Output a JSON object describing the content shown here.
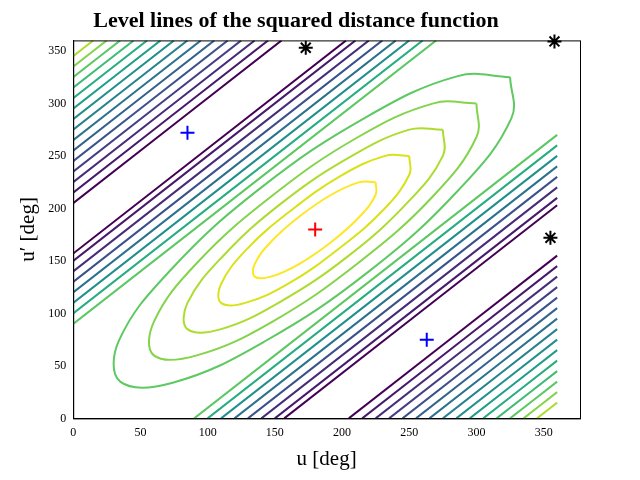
{
  "chart_data": {
    "type": "line",
    "title": "Level lines of the squared distance function",
    "x_label": "u [deg]",
    "y_label": "u′ [deg]",
    "xlim": [
      0,
      377
    ],
    "ylim": [
      0,
      360
    ],
    "xticks": [
      0,
      50,
      100,
      150,
      200,
      250,
      300,
      350
    ],
    "yticks": [
      0,
      50,
      100,
      150,
      200,
      250,
      300,
      350
    ],
    "grid": false,
    "series": [
      {
        "type": "line",
        "color": "#fde725",
        "x": [
          225,
          213,
          192,
          168,
          147,
          135,
          135,
          147,
          168,
          192,
          213,
          225,
          225
        ],
        "values": [
          225,
          225,
          213,
          192,
          168,
          147,
          135,
          135,
          147,
          168,
          192,
          213,
          225
        ]
      },
      {
        "type": "line",
        "color": "#d8e219",
        "x": [
          250,
          232,
          199,
          162,
          129,
          110,
          110,
          128,
          161,
          198,
          231,
          250,
          250
        ],
        "values": [
          250,
          250,
          231,
          198,
          161,
          128,
          110,
          110,
          129,
          162,
          199,
          232,
          250
        ]
      },
      {
        "type": "line",
        "color": "#addc30",
        "x": [
          275,
          250,
          206,
          155,
          111,
          85,
          85,
          110,
          154,
          205,
          249,
          275,
          275
        ],
        "values": [
          275,
          275,
          249,
          205,
          154,
          110,
          85,
          85,
          111,
          155,
          206,
          250,
          275
        ]
      },
      {
        "type": "line",
        "color": "#84d44b",
        "x": [
          300,
          268,
          212,
          148,
          92,
          60,
          60,
          92,
          148,
          212,
          268,
          300,
          300
        ],
        "values": [
          300,
          300,
          268,
          212,
          148,
          92,
          60,
          60,
          92,
          148,
          212,
          268,
          300
        ]
      },
      {
        "type": "line",
        "color": "#5ec962",
        "x": [
          325,
          286,
          218,
          140,
          73,
          34,
          35,
          74,
          142,
          220,
          287,
          326,
          325
        ],
        "values": [
          325,
          326,
          287,
          220,
          142,
          74,
          35,
          34,
          73,
          140,
          218,
          286,
          325
        ]
      },
      {
        "type": "line",
        "color": "#5cc863",
        "x": [
          0,
          270
        ],
        "values": [
          90,
          360
        ]
      },
      {
        "type": "line",
        "color": "#27ad81",
        "x": [
          0,
          260
        ],
        "values": [
          100,
          360
        ]
      },
      {
        "type": "line",
        "color": "#21908d",
        "x": [
          0,
          250
        ],
        "values": [
          110,
          360
        ]
      },
      {
        "type": "line",
        "color": "#2c718e",
        "x": [
          0,
          240
        ],
        "values": [
          120,
          360
        ]
      },
      {
        "type": "line",
        "color": "#3b518b",
        "x": [
          0,
          230
        ],
        "values": [
          130,
          360
        ]
      },
      {
        "type": "line",
        "color": "#472c7a",
        "x": [
          0,
          220
        ],
        "values": [
          140,
          360
        ]
      },
      {
        "type": "line",
        "color": "#481a6c",
        "x": [
          0,
          210
        ],
        "values": [
          150,
          360
        ]
      },
      {
        "type": "line",
        "color": "#440154",
        "x": [
          0,
          203
        ],
        "values": [
          157,
          360
        ]
      },
      {
        "type": "line",
        "color": "#440154",
        "x": [
          0,
          155
        ],
        "values": [
          205,
          360
        ]
      },
      {
        "type": "line",
        "color": "#481a6c",
        "x": [
          0,
          145
        ],
        "values": [
          215,
          360
        ]
      },
      {
        "type": "line",
        "color": "#472c7a",
        "x": [
          0,
          135
        ],
        "values": [
          225,
          360
        ]
      },
      {
        "type": "line",
        "color": "#433e85",
        "x": [
          0,
          125
        ],
        "values": [
          235,
          360
        ]
      },
      {
        "type": "line",
        "color": "#3b518b",
        "x": [
          0,
          115
        ],
        "values": [
          245,
          360
        ]
      },
      {
        "type": "line",
        "color": "#33638d",
        "x": [
          0,
          105
        ],
        "values": [
          255,
          360
        ]
      },
      {
        "type": "line",
        "color": "#2c718e",
        "x": [
          0,
          95
        ],
        "values": [
          265,
          360
        ]
      },
      {
        "type": "line",
        "color": "#26828e",
        "x": [
          0,
          85
        ],
        "values": [
          275,
          360
        ]
      },
      {
        "type": "line",
        "color": "#21908d",
        "x": [
          0,
          75
        ],
        "values": [
          285,
          360
        ]
      },
      {
        "type": "line",
        "color": "#1f9e89",
        "x": [
          0,
          65
        ],
        "values": [
          295,
          360
        ]
      },
      {
        "type": "line",
        "color": "#27ad81",
        "x": [
          0,
          55
        ],
        "values": [
          305,
          360
        ]
      },
      {
        "type": "line",
        "color": "#3fbc73",
        "x": [
          0,
          45
        ],
        "values": [
          315,
          360
        ]
      },
      {
        "type": "line",
        "color": "#5cc863",
        "x": [
          0,
          35
        ],
        "values": [
          325,
          360
        ]
      },
      {
        "type": "line",
        "color": "#84d44b",
        "x": [
          0,
          25
        ],
        "values": [
          335,
          360
        ]
      },
      {
        "type": "line",
        "color": "#addc30",
        "x": [
          0,
          15
        ],
        "values": [
          345,
          360
        ]
      },
      {
        "type": "line",
        "color": "#5cc863",
        "x": [
          90,
          360
        ],
        "values": [
          0,
          270
        ]
      },
      {
        "type": "line",
        "color": "#27ad81",
        "x": [
          100,
          360
        ],
        "values": [
          0,
          260
        ]
      },
      {
        "type": "line",
        "color": "#21908d",
        "x": [
          110,
          360
        ],
        "values": [
          0,
          250
        ]
      },
      {
        "type": "line",
        "color": "#2c718e",
        "x": [
          120,
          360
        ],
        "values": [
          0,
          240
        ]
      },
      {
        "type": "line",
        "color": "#3b518b",
        "x": [
          130,
          360
        ],
        "values": [
          0,
          230
        ]
      },
      {
        "type": "line",
        "color": "#472c7a",
        "x": [
          140,
          360
        ],
        "values": [
          0,
          220
        ]
      },
      {
        "type": "line",
        "color": "#481a6c",
        "x": [
          150,
          360
        ],
        "values": [
          0,
          210
        ]
      },
      {
        "type": "line",
        "color": "#440154",
        "x": [
          157,
          360
        ],
        "values": [
          0,
          203
        ]
      },
      {
        "type": "line",
        "color": "#440154",
        "x": [
          205,
          360
        ],
        "values": [
          0,
          155
        ]
      },
      {
        "type": "line",
        "color": "#481a6c",
        "x": [
          215,
          360
        ],
        "values": [
          0,
          145
        ]
      },
      {
        "type": "line",
        "color": "#472c7a",
        "x": [
          225,
          360
        ],
        "values": [
          0,
          135
        ]
      },
      {
        "type": "line",
        "color": "#433e85",
        "x": [
          235,
          360
        ],
        "values": [
          0,
          125
        ]
      },
      {
        "type": "line",
        "color": "#3b518b",
        "x": [
          245,
          360
        ],
        "values": [
          0,
          115
        ]
      },
      {
        "type": "line",
        "color": "#33638d",
        "x": [
          255,
          360
        ],
        "values": [
          0,
          105
        ]
      },
      {
        "type": "line",
        "color": "#2c718e",
        "x": [
          265,
          360
        ],
        "values": [
          0,
          95
        ]
      },
      {
        "type": "line",
        "color": "#26828e",
        "x": [
          275,
          360
        ],
        "values": [
          0,
          85
        ]
      },
      {
        "type": "line",
        "color": "#21908d",
        "x": [
          285,
          360
        ],
        "values": [
          0,
          75
        ]
      },
      {
        "type": "line",
        "color": "#1f9e89",
        "x": [
          295,
          360
        ],
        "values": [
          0,
          65
        ]
      },
      {
        "type": "line",
        "color": "#27ad81",
        "x": [
          305,
          360
        ],
        "values": [
          0,
          55
        ]
      },
      {
        "type": "line",
        "color": "#3fbc73",
        "x": [
          315,
          360
        ],
        "values": [
          0,
          45
        ]
      },
      {
        "type": "line",
        "color": "#5cc863",
        "x": [
          325,
          360
        ],
        "values": [
          0,
          35
        ]
      },
      {
        "type": "line",
        "color": "#84d44b",
        "x": [
          335,
          360
        ],
        "values": [
          0,
          25
        ]
      },
      {
        "type": "line",
        "color": "#addc30",
        "x": [
          345,
          360
        ],
        "values": [
          0,
          15
        ]
      },
      {
        "type": "scatter",
        "marker": "plus",
        "color": "#ff0000",
        "x": [
          180
        ],
        "values": [
          180
        ]
      },
      {
        "type": "scatter",
        "marker": "plus",
        "color": "#0000ff",
        "x": [
          85,
          263
        ],
        "values": [
          272,
          75
        ]
      },
      {
        "type": "scatter",
        "marker": "star",
        "color": "#000000",
        "x": [
          173,
          358,
          355
        ],
        "values": [
          353,
          359,
          172
        ]
      }
    ]
  }
}
